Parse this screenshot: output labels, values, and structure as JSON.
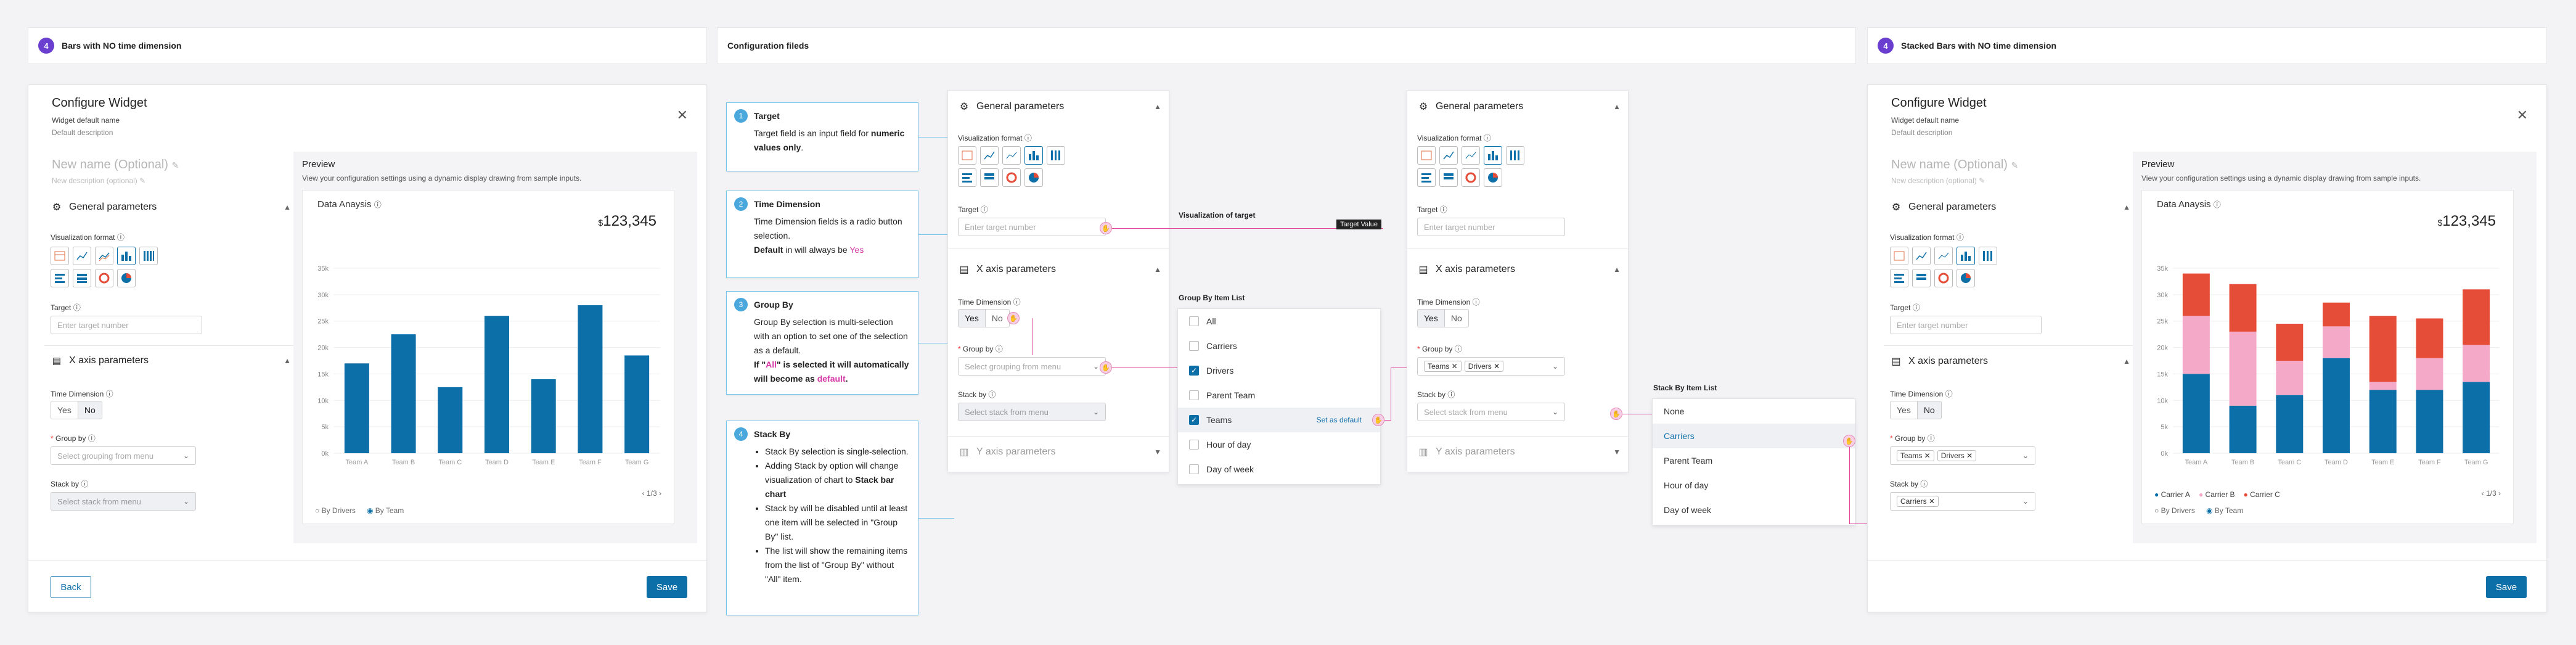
{
  "headers": {
    "left": {
      "num": "4",
      "title": "Bars with NO time dimension"
    },
    "center": {
      "title": "Configuration fileds"
    },
    "right": {
      "num": "4",
      "title": "Stacked Bars with NO time dimension"
    }
  },
  "widget": {
    "title": "Configure Widget",
    "default_name_label": "Widget default name",
    "default_desc_label": "Default description",
    "name_placeholder": "New name (Optional)",
    "desc_placeholder": "New description (optional)",
    "back": "Back",
    "save": "Save",
    "general": "General parameters",
    "viz_format": "Visualization format",
    "target": "Target",
    "target_placeholder": "Enter target number",
    "x_axis": "X axis parameters",
    "y_axis": "Y axis parameters",
    "time_dim": "Time Dimension",
    "yes": "Yes",
    "no": "No",
    "group_by": "Group by",
    "group_placeholder": "Select grouping from menu",
    "stack_by": "Stack by",
    "stack_placeholder": "Select stack from menu",
    "chip_teams": "Teams",
    "chip_drivers": "Drivers",
    "chip_carriers": "Carriers"
  },
  "preview": {
    "title": "Preview",
    "desc": "View your configuration settings using a dynamic display drawing from sample inputs.",
    "data_label": "Data Anaysis",
    "currency": "$",
    "total": "123,345",
    "pager": "1/3",
    "radio1": "By Drivers",
    "radio2": "By Team"
  },
  "steps": [
    {
      "num": "1",
      "title": "Target",
      "body": "Target field is an input field for numeric values only."
    },
    {
      "num": "2",
      "title": "Time Dimension",
      "body": "Time Dimension fields is a radio button selection. Default in will always be Yes"
    },
    {
      "num": "3",
      "title": "Group By",
      "body": "Group By selection is multi-selection with an option to set one of the selection as a default. If \"All\" is selected it will automatically will become as default."
    },
    {
      "num": "4",
      "title": "Stack By",
      "bullets": [
        "Stack By selection is single-selection.",
        "Adding Stack by option will change visualization of chart to Stack bar chart",
        "Stack by will be disabled until at least one item will be selected in \"Group By\" list.",
        "The list will show the remaining items from the list of \"Group By\" without \"All\" item."
      ]
    }
  ],
  "annotations": {
    "viz_target": "Visualization of target",
    "target_value": "Target Value",
    "group_list_title": "Group By Item List",
    "stack_list_title": "Stack By Item List",
    "set_default": "Set as default"
  },
  "group_list": [
    "All",
    "Carriers",
    "Drivers",
    "Parent Team",
    "Teams",
    "Hour of day",
    "Day of week"
  ],
  "stack_list": [
    "None",
    "Carriers",
    "Parent Team",
    "Hour of day",
    "Day of week"
  ],
  "chart_left": {
    "type": "bar",
    "categories": [
      "Team A",
      "Team B",
      "Team C",
      "Team D",
      "Team E",
      "Team F",
      "Team G"
    ],
    "values": [
      17,
      22.5,
      12.5,
      26,
      14,
      28,
      18.5
    ],
    "yticks": [
      "0k",
      "5k",
      "10k",
      "15k",
      "20k",
      "25k",
      "30k",
      "35k"
    ],
    "ylim": [
      0,
      35
    ],
    "color": "#0d6fa8"
  },
  "chart_data": [
    {
      "type": "bar",
      "title": "Data Anaysis",
      "categories": [
        "Team A",
        "Team B",
        "Team C",
        "Team D",
        "Team E",
        "Team F",
        "Team G"
      ],
      "values": [
        17,
        22.5,
        12.5,
        26,
        14,
        28,
        18.5
      ],
      "ylim": [
        0,
        35
      ]
    },
    {
      "type": "bar",
      "title": "Data Anaysis",
      "stacked": true,
      "categories": [
        "Team A",
        "Team B",
        "Team C",
        "Team D",
        "Team E",
        "Team F",
        "Team G"
      ],
      "series": [
        {
          "name": "Carrier A",
          "values": [
            15,
            9,
            11,
            18,
            12,
            12,
            13.5
          ],
          "color": "#0d6fa8"
        },
        {
          "name": "Carrier B",
          "values": [
            11,
            14,
            6.5,
            6,
            1.5,
            6,
            7
          ],
          "color": "#f4a9c8"
        },
        {
          "name": "Carrier C",
          "values": [
            8,
            9,
            7,
            4.5,
            12.5,
            7.5,
            10.5
          ],
          "color": "#e64d38"
        }
      ],
      "ylim": [
        0,
        35
      ]
    }
  ]
}
